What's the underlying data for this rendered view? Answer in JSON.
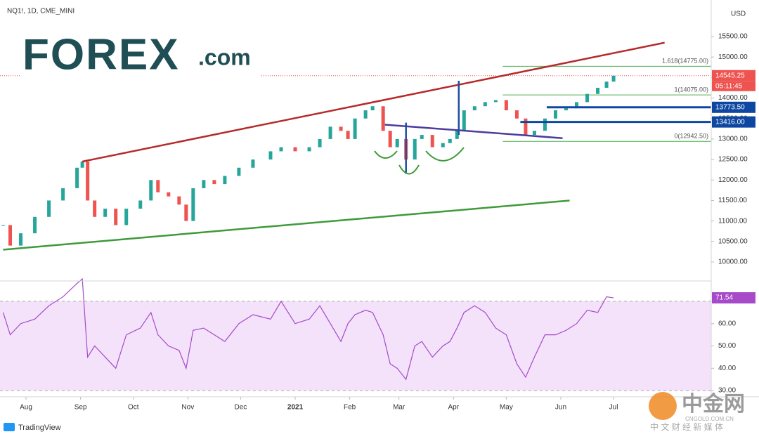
{
  "chart_data": [
    {
      "type": "candlestick",
      "title": "NQ1!, 1D, CME_MINI",
      "currency": "USD",
      "x": [
        18,
        22,
        28,
        36,
        44,
        52,
        60,
        63,
        66,
        70,
        76,
        82,
        88,
        96,
        102,
        106,
        112,
        118,
        122,
        126,
        132,
        138,
        144,
        152,
        160,
        170,
        176,
        184,
        192,
        198,
        204,
        210,
        214,
        218,
        224,
        228,
        234,
        238,
        242,
        247,
        252,
        256,
        262,
        268,
        272,
        276,
        280,
        286,
        292,
        298,
        304,
        310,
        315,
        320,
        326,
        332,
        338,
        344,
        350,
        356,
        361,
        365
      ],
      "values": [
        10900,
        10400,
        10700,
        11100,
        11500,
        11800,
        12300,
        12450,
        11500,
        11100,
        11300,
        10900,
        11300,
        11500,
        12000,
        11700,
        11600,
        11400,
        11000,
        11800,
        12000,
        11900,
        12100,
        12300,
        12500,
        12700,
        12800,
        12700,
        12800,
        13000,
        13300,
        13200,
        13000,
        13500,
        13700,
        13800,
        13200,
        12800,
        13000,
        12500,
        13000,
        13100,
        12800,
        12900,
        13000,
        13200,
        13700,
        13800,
        13900,
        13950,
        13700,
        13500,
        13100,
        13200,
        13500,
        13700,
        13750,
        13900,
        14100,
        14250,
        14400,
        14545.25
      ],
      "up_color": "#26a69a",
      "down_color": "#ef5350",
      "xlim": [
        16.2,
        420.5
      ],
      "ylim": [
        9537,
        16220
      ],
      "xticks": [
        {
          "value": 31,
          "label": "Aug"
        },
        {
          "value": 62,
          "label": "Sep"
        },
        {
          "value": 92,
          "label": "Oct"
        },
        {
          "value": 123,
          "label": "Nov"
        },
        {
          "value": 153,
          "label": "Dec"
        },
        {
          "value": 184,
          "label": "2021"
        },
        {
          "value": 215,
          "label": "Feb"
        },
        {
          "value": 243,
          "label": "Mar"
        },
        {
          "value": 274,
          "label": "Apr"
        },
        {
          "value": 304,
          "label": "May"
        },
        {
          "value": 335,
          "label": "Jun"
        },
        {
          "value": 365,
          "label": "Jul"
        }
      ],
      "yticks": [
        {
          "value": 10000,
          "label": "10000.00"
        },
        {
          "value": 10500,
          "label": "10500.00"
        },
        {
          "value": 11000,
          "label": "11000.00"
        },
        {
          "value": 11500,
          "label": "11500.00"
        },
        {
          "value": 12000,
          "label": "12000.00"
        },
        {
          "value": 12500,
          "label": "12500.00"
        },
        {
          "value": 13000,
          "label": "13000.00"
        },
        {
          "value": 13500,
          "label": "13500.00"
        },
        {
          "value": 14000,
          "label": "14000.00"
        },
        {
          "value": 14500,
          "label": "14500.00"
        },
        {
          "value": 15000,
          "label": "15000.00"
        },
        {
          "value": 15500,
          "label": "15500.00"
        }
      ],
      "trendlines": [
        {
          "color": "#b52a2a",
          "x": [
            63,
            394
          ],
          "y": [
            12450,
            15350
          ]
        },
        {
          "color": "#3f9a3a",
          "x": [
            18,
            340
          ],
          "y": [
            10300,
            11500
          ]
        },
        {
          "color": "#4b3c9e",
          "x": [
            235,
            336
          ],
          "y": [
            13350,
            13020
          ]
        },
        {
          "color": "#1e4fa0",
          "x": [
            247,
            247
          ],
          "y": [
            13400,
            12150
          ]
        },
        {
          "color": "#1e4fa0",
          "x": [
            277,
            277
          ],
          "y": [
            13100,
            14420
          ]
        }
      ],
      "fib": {
        "color": "#4caf50",
        "x_start": 302,
        "levels": [
          {
            "value": 14775,
            "label": "1.618(14775.00)"
          },
          {
            "value": 14075,
            "label": "1(14075.00)"
          },
          {
            "value": 12942.5,
            "label": "0(12942.50)"
          }
        ]
      },
      "levels": [
        {
          "value": 13773.5,
          "label": "13773.50",
          "x_start": 327,
          "color": "#0d47a1"
        },
        {
          "value": 13416,
          "label": "13416.00",
          "x_start": 312,
          "color": "#0d47a1"
        }
      ],
      "last": {
        "value": 14545.25,
        "label": "14545.25",
        "countdown": "05:11:45",
        "color": "#ef5350"
      }
    },
    {
      "type": "line",
      "x": [
        18,
        22,
        28,
        36,
        44,
        52,
        60,
        63,
        66,
        70,
        76,
        82,
        88,
        96,
        102,
        106,
        112,
        118,
        122,
        126,
        132,
        138,
        144,
        152,
        160,
        170,
        176,
        184,
        192,
        198,
        204,
        210,
        214,
        218,
        224,
        228,
        234,
        238,
        242,
        247,
        252,
        256,
        262,
        268,
        272,
        276,
        280,
        286,
        292,
        298,
        304,
        310,
        315,
        320,
        326,
        332,
        338,
        344,
        350,
        356,
        361,
        365
      ],
      "values": [
        65,
        55,
        60,
        62,
        68,
        72,
        78,
        80,
        45,
        50,
        45,
        40,
        55,
        58,
        65,
        55,
        50,
        48,
        40,
        57,
        58,
        55,
        52,
        60,
        64,
        62,
        70,
        60,
        62,
        68,
        60,
        52,
        60,
        64,
        66,
        65,
        55,
        42,
        40,
        35,
        50,
        52,
        45,
        50,
        52,
        58,
        65,
        68,
        65,
        58,
        55,
        42,
        36,
        45,
        55,
        55,
        57,
        60,
        66,
        65,
        72,
        71.54
      ],
      "color": "#a64ac9",
      "xlim": [
        16.2,
        420.5
      ],
      "ylim": [
        27.2,
        79.1
      ],
      "yticks": [
        {
          "value": 30,
          "label": "30.00"
        },
        {
          "value": 40,
          "label": "40.00"
        },
        {
          "value": 50,
          "label": "50.00"
        },
        {
          "value": 60,
          "label": "60.00"
        }
      ],
      "band": [
        30,
        70
      ],
      "band_color": "#f3e2fa",
      "last": {
        "value": 71.54,
        "label": "71.54"
      }
    }
  ],
  "branding": {
    "logo": "FOREX",
    "logo_suffix": ".com",
    "platform": "TradingView",
    "watermark": "中金网",
    "watermark_url": "CNGOLD.COM.CN",
    "watermark_tagline": "中 文 财 经 新 媒 体"
  }
}
